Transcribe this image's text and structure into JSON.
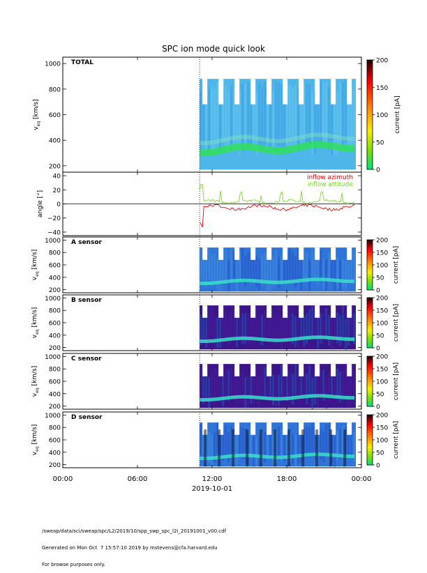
{
  "chart_data": {
    "type": "heatmap",
    "title": "SPC ion mode quick look",
    "x_axis": {
      "ticks": [
        "00:00",
        "06:00",
        "12:00",
        "18:00",
        "00:00"
      ],
      "label": "2019-10-01",
      "range_hours": [
        0,
        24
      ],
      "data_start_hour": 11.0,
      "dotted_marker_hour": 11.0
    },
    "panels": [
      {
        "name": "TOTAL",
        "ylabel_main": "v",
        "ylabel_sub": "eq",
        "ylabel_unit": "[km/s]",
        "yticks": [
          "200",
          "400",
          "600",
          "800",
          "1000"
        ],
        "ylim": [
          150,
          1050
        ],
        "cbar_label": "current [pA]",
        "cbar_ticks": [
          "0",
          "50",
          "100",
          "150",
          "200"
        ],
        "clim": [
          0,
          200
        ],
        "colormap": "rainbow-green-low"
      },
      {
        "name": "angle",
        "ylabel_main": "angle [°]",
        "yticks": [
          "−40",
          "−20",
          "0",
          "20",
          "40"
        ],
        "ylim": [
          -45,
          45
        ],
        "series": [
          {
            "name": "inflow azimuth",
            "color": "#e8000b"
          },
          {
            "name": "inflow attitude",
            "color": "#7cd32c"
          }
        ]
      },
      {
        "name": "A sensor",
        "ylabel_main": "v",
        "ylabel_sub": "eq",
        "ylabel_unit": "[km/s]",
        "yticks": [
          "200",
          "400",
          "600",
          "800",
          "1000"
        ],
        "ylim": [
          150,
          1050
        ],
        "cbar_label": "current [pA]",
        "cbar_ticks": [
          "0",
          "50",
          "100",
          "150",
          "200"
        ],
        "clim": [
          0,
          200
        ]
      },
      {
        "name": "B sensor",
        "ylabel_main": "v",
        "ylabel_sub": "eq",
        "ylabel_unit": "[km/s]",
        "yticks": [
          "200",
          "400",
          "600",
          "800",
          "1000"
        ],
        "ylim": [
          150,
          1050
        ],
        "cbar_label": "current [pA]",
        "cbar_ticks": [
          "0",
          "50",
          "100",
          "150",
          "200"
        ],
        "clim": [
          0,
          200
        ]
      },
      {
        "name": "C sensor",
        "ylabel_main": "v",
        "ylabel_sub": "eq",
        "ylabel_unit": "[km/s]",
        "yticks": [
          "200",
          "400",
          "600",
          "800",
          "1000"
        ],
        "ylim": [
          150,
          1050
        ],
        "cbar_label": "current [pA]",
        "cbar_ticks": [
          "0",
          "50",
          "100",
          "150",
          "200"
        ],
        "clim": [
          0,
          200
        ]
      },
      {
        "name": "D sensor",
        "ylabel_main": "v",
        "ylabel_sub": "eq",
        "ylabel_unit": "[km/s]",
        "yticks": [
          "200",
          "400",
          "600",
          "800",
          "1000"
        ],
        "ylim": [
          150,
          1050
        ],
        "cbar_label": "current [pA]",
        "cbar_ticks": [
          "0",
          "50",
          "100",
          "150",
          "200"
        ],
        "clim": [
          0,
          200
        ]
      }
    ],
    "band_center_kms": 330
  },
  "footer": {
    "line1": "/sweap/data/sci/sweap/spc/L2/2019/10/spp_swp_spc_l2i_20191001_v00.cdf",
    "line2": "Generated on Mon Oct  7 15:57:10 2019 by mstevens@cfa.harvard.edu",
    "line3": "For browse purposes only."
  },
  "colors": {
    "azimuth": "#e8000b",
    "attitude": "#7cd32c"
  }
}
